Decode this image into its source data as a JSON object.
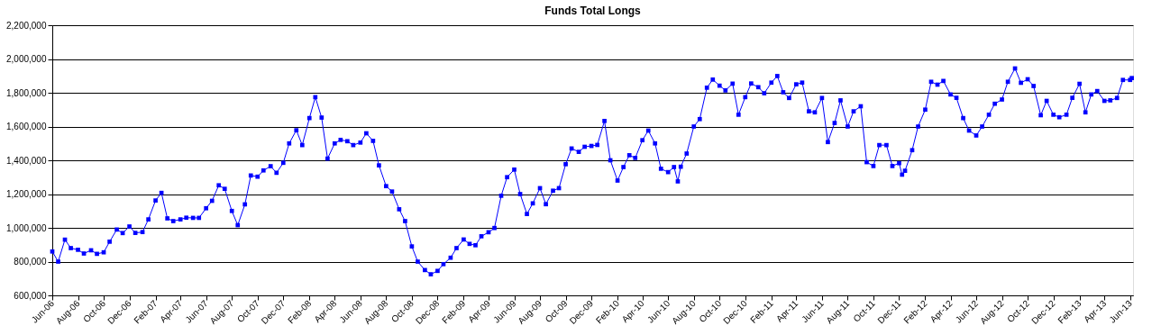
{
  "chart_data": {
    "type": "line",
    "title": "Funds Total Longs",
    "x": [
      "2006-06-01",
      "2006-06-15",
      "2006-07-01",
      "2006-07-15",
      "2006-08-01",
      "2006-08-15",
      "2006-09-01",
      "2006-09-15",
      "2006-10-01",
      "2006-10-15",
      "2006-11-01",
      "2006-11-15",
      "2006-12-01",
      "2006-12-15",
      "2007-01-01",
      "2007-01-15",
      "2007-02-01",
      "2007-02-15",
      "2007-03-01",
      "2007-03-15",
      "2007-04-01",
      "2007-04-15",
      "2007-05-01",
      "2007-05-15",
      "2007-06-01",
      "2007-06-15",
      "2007-07-01",
      "2007-07-15",
      "2007-08-01",
      "2007-08-15",
      "2007-09-01",
      "2007-09-15",
      "2007-10-01",
      "2007-10-15",
      "2007-11-01",
      "2007-11-15",
      "2007-12-01",
      "2007-12-15",
      "2008-01-01",
      "2008-01-15",
      "2008-02-01",
      "2008-02-15",
      "2008-03-01",
      "2008-03-15",
      "2008-04-01",
      "2008-04-15",
      "2008-05-01",
      "2008-05-15",
      "2008-06-01",
      "2008-06-15",
      "2008-07-01",
      "2008-07-15",
      "2008-08-01",
      "2008-08-15",
      "2008-09-01",
      "2008-09-15",
      "2008-10-01",
      "2008-10-15",
      "2008-11-01",
      "2008-11-15",
      "2008-12-01",
      "2008-12-15",
      "2009-01-01",
      "2009-01-15",
      "2009-02-01",
      "2009-02-15",
      "2009-03-01",
      "2009-03-15",
      "2009-04-01",
      "2009-04-15",
      "2009-05-01",
      "2009-05-15",
      "2009-06-01",
      "2009-06-15",
      "2009-07-01",
      "2009-07-15",
      "2009-08-01",
      "2009-08-15",
      "2009-09-01",
      "2009-09-15",
      "2009-10-01",
      "2009-10-15",
      "2009-11-01",
      "2009-11-15",
      "2009-12-01",
      "2009-12-15",
      "2010-01-01",
      "2010-01-15",
      "2010-02-01",
      "2010-02-15",
      "2010-03-01",
      "2010-03-15",
      "2010-04-01",
      "2010-04-15",
      "2010-05-01",
      "2010-05-15",
      "2010-06-01",
      "2010-06-15",
      "2010-06-24",
      "2010-07-01",
      "2010-07-15",
      "2010-08-01",
      "2010-08-15",
      "2010-09-01",
      "2010-09-15",
      "2010-10-01",
      "2010-10-15",
      "2010-11-01",
      "2010-11-15",
      "2010-12-01",
      "2010-12-15",
      "2011-01-01",
      "2011-01-15",
      "2011-02-01",
      "2011-02-15",
      "2011-03-01",
      "2011-03-15",
      "2011-04-01",
      "2011-04-15",
      "2011-05-01",
      "2011-05-15",
      "2011-06-01",
      "2011-06-15",
      "2011-07-01",
      "2011-07-15",
      "2011-08-01",
      "2011-08-15",
      "2011-09-01",
      "2011-09-15",
      "2011-10-01",
      "2011-10-15",
      "2011-11-01",
      "2011-11-15",
      "2011-12-01",
      "2011-12-08",
      "2011-12-15",
      "2012-01-01",
      "2012-01-15",
      "2012-02-01",
      "2012-02-15",
      "2012-03-01",
      "2012-03-15",
      "2012-04-01",
      "2012-04-15",
      "2012-05-01",
      "2012-05-15",
      "2012-06-01",
      "2012-06-15",
      "2012-07-01",
      "2012-07-15",
      "2012-08-01",
      "2012-08-15",
      "2012-09-01",
      "2012-09-15",
      "2012-10-01",
      "2012-10-15",
      "2012-11-01",
      "2012-11-15",
      "2012-12-01",
      "2012-12-15",
      "2013-01-01",
      "2013-01-15",
      "2013-02-01",
      "2013-02-15",
      "2013-03-01",
      "2013-03-15",
      "2013-04-01",
      "2013-04-15",
      "2013-05-01",
      "2013-05-15",
      "2013-06-01",
      "2013-06-05"
    ],
    "series": [
      {
        "color": "#0000ff",
        "values": [
          860000,
          800000,
          930000,
          880000,
          870000,
          848000,
          867000,
          846000,
          855000,
          918000,
          990000,
          969000,
          1008000,
          970000,
          975000,
          1050000,
          1162000,
          1207000,
          1056000,
          1040000,
          1050000,
          1060000,
          1059000,
          1059000,
          1116000,
          1160000,
          1252000,
          1231000,
          1100000,
          1016000,
          1139000,
          1310000,
          1303000,
          1340000,
          1365000,
          1326000,
          1385000,
          1500000,
          1578000,
          1490000,
          1650000,
          1774000,
          1653000,
          1410000,
          1500000,
          1521000,
          1513000,
          1490000,
          1505000,
          1560000,
          1515000,
          1370000,
          1247000,
          1215000,
          1110000,
          1040000,
          890000,
          800000,
          750000,
          725000,
          745000,
          785000,
          823000,
          880000,
          931000,
          905000,
          897000,
          950000,
          974000,
          999000,
          1190000,
          1300000,
          1345000,
          1200000,
          1082000,
          1145000,
          1235000,
          1140000,
          1220000,
          1235000,
          1377000,
          1470000,
          1450000,
          1480000,
          1485000,
          1491000,
          1633000,
          1400000,
          1280000,
          1360000,
          1430000,
          1414000,
          1519000,
          1576000,
          1500000,
          1350000,
          1330000,
          1360000,
          1275000,
          1362000,
          1440000,
          1600000,
          1644000,
          1830000,
          1878000,
          1842000,
          1814000,
          1854000,
          1670000,
          1774000,
          1855000,
          1833000,
          1797000,
          1860000,
          1899000,
          1803000,
          1769000,
          1850000,
          1860000,
          1690000,
          1684000,
          1769000,
          1508000,
          1621000,
          1755000,
          1600000,
          1690000,
          1720000,
          1389000,
          1366000,
          1490000,
          1490000,
          1366000,
          1383000,
          1315000,
          1338000,
          1460000,
          1600000,
          1700000,
          1865000,
          1848000,
          1870000,
          1790000,
          1770000,
          1650000,
          1576000,
          1547000,
          1600000,
          1670000,
          1735000,
          1760000,
          1865000,
          1944000,
          1859000,
          1880000,
          1840000,
          1667000,
          1752000,
          1670000,
          1655000,
          1670000,
          1770000,
          1853000,
          1684000,
          1790000,
          1810000,
          1752000,
          1755000,
          1769000,
          1876000,
          1876000,
          1887000
        ]
      }
    ],
    "xlim": [
      "2006-06-01",
      "2013-06-08"
    ],
    "xticks": [
      {
        "value": "2006-06-01",
        "label": "Jun-06"
      },
      {
        "value": "2006-08-01",
        "label": "Aug-06"
      },
      {
        "value": "2006-10-01",
        "label": "Oct-06"
      },
      {
        "value": "2006-12-01",
        "label": "Dec-06"
      },
      {
        "value": "2007-02-01",
        "label": "Feb-07"
      },
      {
        "value": "2007-04-01",
        "label": "Apr-07"
      },
      {
        "value": "2007-06-01",
        "label": "Jun-07"
      },
      {
        "value": "2007-08-01",
        "label": "Aug-07"
      },
      {
        "value": "2007-10-01",
        "label": "Oct-07"
      },
      {
        "value": "2007-12-01",
        "label": "Dec-07"
      },
      {
        "value": "2008-02-01",
        "label": "Feb-08"
      },
      {
        "value": "2008-04-01",
        "label": "Apr-08"
      },
      {
        "value": "2008-06-01",
        "label": "Jun-08"
      },
      {
        "value": "2008-08-01",
        "label": "Aug-08"
      },
      {
        "value": "2008-10-01",
        "label": "Oct-08"
      },
      {
        "value": "2008-12-01",
        "label": "Dec-08"
      },
      {
        "value": "2009-02-01",
        "label": "Feb-09"
      },
      {
        "value": "2009-04-01",
        "label": "Apr-09"
      },
      {
        "value": "2009-06-01",
        "label": "Jun-09"
      },
      {
        "value": "2009-08-01",
        "label": "Aug-09"
      },
      {
        "value": "2009-10-01",
        "label": "Oct-09"
      },
      {
        "value": "2009-12-01",
        "label": "Dec-09"
      },
      {
        "value": "2010-02-01",
        "label": "Feb-10"
      },
      {
        "value": "2010-04-01",
        "label": "Apr-10"
      },
      {
        "value": "2010-06-01",
        "label": "Jun-10"
      },
      {
        "value": "2010-08-01",
        "label": "Aug-10"
      },
      {
        "value": "2010-10-01",
        "label": "Oct-10"
      },
      {
        "value": "2010-12-01",
        "label": "Dec-10"
      },
      {
        "value": "2011-02-01",
        "label": "Feb-11"
      },
      {
        "value": "2011-04-01",
        "label": "Apr-11"
      },
      {
        "value": "2011-06-01",
        "label": "Jun-11"
      },
      {
        "value": "2011-08-01",
        "label": "Aug-11"
      },
      {
        "value": "2011-10-01",
        "label": "Oct-11"
      },
      {
        "value": "2011-12-01",
        "label": "Dec-11"
      },
      {
        "value": "2012-02-01",
        "label": "Feb-12"
      },
      {
        "value": "2012-04-01",
        "label": "Apr-12"
      },
      {
        "value": "2012-06-01",
        "label": "Jun-12"
      },
      {
        "value": "2012-08-01",
        "label": "Aug-12"
      },
      {
        "value": "2012-10-01",
        "label": "Oct-12"
      },
      {
        "value": "2012-12-01",
        "label": "Dec-12"
      },
      {
        "value": "2013-02-01",
        "label": "Feb-13"
      },
      {
        "value": "2013-04-01",
        "label": "Apr-13"
      },
      {
        "value": "2013-06-01",
        "label": "Jun-13"
      }
    ],
    "ylim": [
      600000,
      2200000
    ],
    "yticks": [
      {
        "value": 600000,
        "label": "600,000"
      },
      {
        "value": 800000,
        "label": "800,000"
      },
      {
        "value": 1000000,
        "label": "1,000,000"
      },
      {
        "value": 1200000,
        "label": "1,200,000"
      },
      {
        "value": 1400000,
        "label": "1,400,000"
      },
      {
        "value": 1600000,
        "label": "1,600,000"
      },
      {
        "value": 1800000,
        "label": "1,800,000"
      },
      {
        "value": 2000000,
        "label": "2,000,000"
      },
      {
        "value": 2200000,
        "label": "2,200,000"
      }
    ],
    "grid": "y",
    "marker": "square",
    "line_style": "solid"
  }
}
